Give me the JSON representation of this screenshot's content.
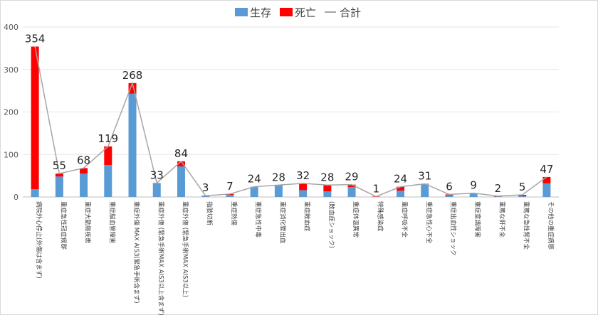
{
  "chart_data": {
    "type": "bar",
    "stacked": true,
    "categories": [
      "病院外心停止(外傷は含まず)",
      "重症急性冠症候群",
      "重症大動脈疾患",
      "重症脳血管障害",
      "重症外傷 MAX AIS3(緊急手術含まず)",
      "重症外傷 (緊急手術MAX AIS3以上含まず)",
      "重症外傷 (緊急手術MAX AIS3以上)",
      "指肢切断",
      "重症熱傷",
      "重症急性中毒",
      "重症消化管出血",
      "重症敗血症",
      "(敗血症ショック)",
      "重症体温異常",
      "特殊感染症",
      "重症呼吸不全",
      "重症急性心不全",
      "重症出血性ショック",
      "重症意識障害",
      "重篤な肝不全",
      "重篤な急性腎不全",
      "その他の重症病態"
    ],
    "series": [
      {
        "name": "生存",
        "color": "#5b9bd5",
        "values": [
          18,
          48,
          55,
          75,
          243,
          33,
          72,
          2,
          5,
          24,
          27,
          16,
          13,
          23,
          0,
          15,
          30,
          4,
          9,
          1,
          2,
          32
        ]
      },
      {
        "name": "死亡",
        "color": "#ff0000",
        "values": [
          336,
          7,
          13,
          44,
          25,
          0,
          12,
          1,
          2,
          0,
          1,
          16,
          15,
          6,
          1,
          9,
          1,
          2,
          0,
          1,
          3,
          15
        ]
      }
    ],
    "line": {
      "name": "合計",
      "color": "#a6a6a6",
      "values": [
        354,
        55,
        68,
        119,
        268,
        33,
        84,
        3,
        7,
        24,
        28,
        32,
        28,
        29,
        1,
        24,
        31,
        6,
        9,
        2,
        5,
        47
      ]
    },
    "ylim": [
      0,
      400
    ],
    "yticks": [
      0,
      100,
      200,
      300,
      400
    ],
    "grid": true,
    "legend": "top-center"
  }
}
